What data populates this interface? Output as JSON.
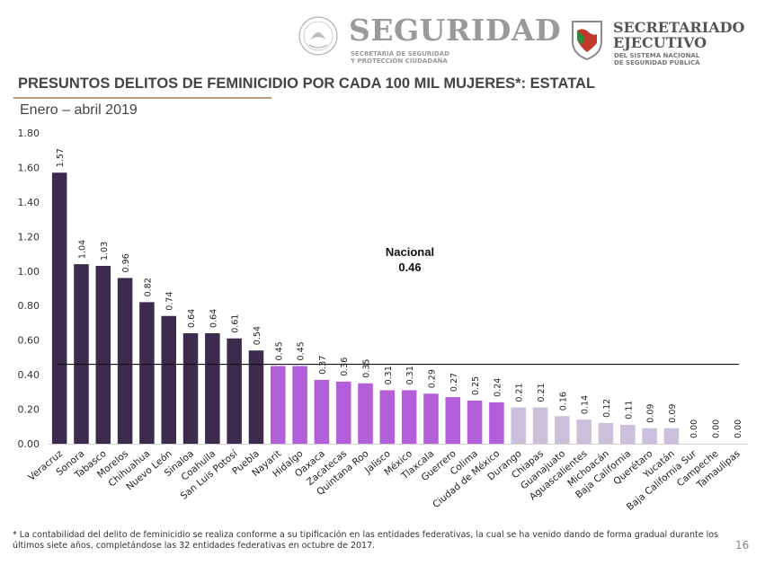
{
  "header": {
    "seguridad": {
      "word": "SEGURIDAD",
      "sub_line1": "SECRETARÍA DE SEGURIDAD",
      "sub_line2": "Y PROTECCIÓN CIUDADANA"
    },
    "sesnsp": {
      "word_line1": "SECRETARIADO",
      "word_line2": "EJECUTIVO",
      "sub_line1": "DEL SISTEMA NACIONAL",
      "sub_line2": "DE SEGURIDAD PÚBLICA"
    }
  },
  "footnote": "* La contabilidad del delito de feminicidio se realiza conforme a su tipificación en las entidades federativas, la cual se ha venido dando de forma gradual durante los últimos siete años, completándose las 32 entidades federativas en octubre de 2017.",
  "page_number": "16",
  "colors": {
    "dark": "#3d2b4e",
    "medium": "#b25fd9",
    "light": "#cbc0db",
    "title_rule": "#b79c76"
  },
  "chart_data": {
    "type": "bar",
    "title": "PRESUNTOS DELITOS DE FEMINICIDIO POR CADA 100 MIL MUJERES*: ESTATAL",
    "subtitle": "Enero – abril 2019",
    "xlabel": "",
    "ylabel": "",
    "ylim": [
      0,
      1.8
    ],
    "y_ticks": [
      "0.00",
      "0.20",
      "0.40",
      "0.60",
      "0.80",
      "1.00",
      "1.20",
      "1.40",
      "1.60",
      "1.80"
    ],
    "grid": false,
    "categories": [
      "Veracruz",
      "Sonora",
      "Tabasco",
      "Morelos",
      "Chihuahua",
      "Nuevo León",
      "Sinaloa",
      "Coahuila",
      "San Luis Potosí",
      "Puebla",
      "Nayarit",
      "Hidalgo",
      "Oaxaca",
      "Zacatecas",
      "Quintana Roo",
      "Jalisco",
      "México",
      "Tlaxcala",
      "Guerrero",
      "Colima",
      "Ciudad de México",
      "Durango",
      "Chiapas",
      "Guanajuato",
      "Aguascalientes",
      "Michoacán",
      "Baja California",
      "Querétaro",
      "Yucatán",
      "Baja California Sur",
      "Campeche",
      "Tamaulipas"
    ],
    "values": [
      1.57,
      1.04,
      1.03,
      0.96,
      0.82,
      0.74,
      0.64,
      0.64,
      0.61,
      0.54,
      0.45,
      0.45,
      0.37,
      0.36,
      0.35,
      0.31,
      0.31,
      0.29,
      0.27,
      0.25,
      0.24,
      0.21,
      0.21,
      0.16,
      0.14,
      0.12,
      0.11,
      0.09,
      0.09,
      0.0,
      0.0,
      0.0
    ],
    "value_labels": [
      "1.57",
      "1.04",
      "1.03",
      "0.96",
      "0.82",
      "0.74",
      "0.64",
      "0.64",
      "0.61",
      "0.54",
      "0.45",
      "0.45",
      "0.37",
      "0.36",
      "0.35",
      "0.31",
      "0.31",
      "0.29",
      "0.27",
      "0.25",
      "0.24",
      "0.21",
      "0.21",
      "0.16",
      "0.14",
      "0.12",
      "0.11",
      "0.09",
      "0.09",
      "0.00",
      "0.00",
      "0.00"
    ],
    "groups": [
      0,
      0,
      0,
      0,
      0,
      0,
      0,
      0,
      0,
      0,
      1,
      1,
      1,
      1,
      1,
      1,
      1,
      1,
      1,
      1,
      1,
      2,
      2,
      2,
      2,
      2,
      2,
      2,
      2,
      2,
      2,
      2
    ],
    "reference_line": {
      "value": 0.46,
      "label_line1": "Nacional",
      "label_line2": "0.46"
    }
  }
}
